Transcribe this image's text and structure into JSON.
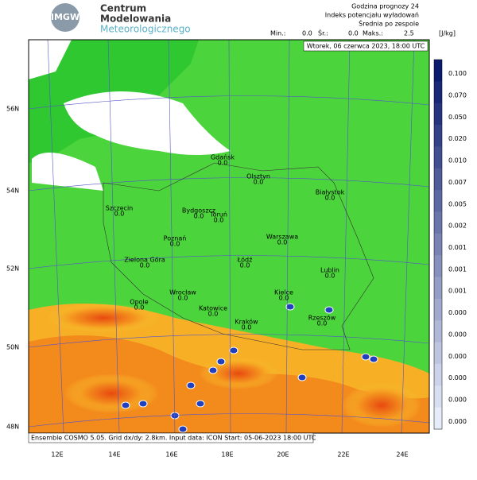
{
  "header": {
    "logo": "IMGW",
    "org": [
      "Centrum",
      "Modelowania",
      "Meteorologicznego"
    ],
    "info": [
      "Godzina prognozy 24",
      "Indeks potencjału wyładowań",
      "Średnia po zespole"
    ],
    "stats": [
      {
        "label": "Min.:",
        "value": "0.0"
      },
      {
        "label": "Śr.:",
        "value": "0.0"
      },
      {
        "label": "Maks.:",
        "value": "2.5"
      }
    ],
    "unit": "[J/kg]"
  },
  "date": "Wtorek, 06 czerwca 2023, 18:00 UTC",
  "footer": "Ensemble COSMO 5.05. Grid dx/dy: 2.8km. Input data: ICON Start: 05-06-2023 18:00 UTC",
  "axes": {
    "lat": [
      "56N",
      "54N",
      "52N",
      "50N",
      "48N"
    ],
    "lon": [
      "12E",
      "14E",
      "16E",
      "18E",
      "20E",
      "22E",
      "24E"
    ]
  },
  "legend": {
    "labels": [
      "0.100",
      "0.070",
      "0.050",
      "0.020",
      "0.010",
      "0.007",
      "0.005",
      "0.002",
      "0.001",
      "0.001",
      "0.001",
      "0.000",
      "0.000",
      "0.000",
      "0.000",
      "0.000",
      "0.000"
    ]
  },
  "cities": [
    {
      "name": "Gdańsk",
      "value": "0.0"
    },
    {
      "name": "Olsztyn",
      "value": "0.0"
    },
    {
      "name": "Białystok",
      "value": "0.0"
    },
    {
      "name": "Szczecin",
      "value": "0.0"
    },
    {
      "name": "Bydgoszcz",
      "value": "0.0"
    },
    {
      "name": "Toruń",
      "value": "0.0"
    },
    {
      "name": "Poznań",
      "value": "0.0"
    },
    {
      "name": "Warszawa",
      "value": "0.0"
    },
    {
      "name": "Zielona Góra",
      "value": "0.0"
    },
    {
      "name": "Łódź",
      "value": "0.0"
    },
    {
      "name": "Lublin",
      "value": "0.0"
    },
    {
      "name": "Wrocław",
      "value": "0.0"
    },
    {
      "name": "Kielce",
      "value": "0.0"
    },
    {
      "name": "Opole",
      "value": "0.0"
    },
    {
      "name": "Katowice",
      "value": "0.0"
    },
    {
      "name": "Kraków",
      "value": "0.0"
    },
    {
      "name": "Rzeszów",
      "value": "0.0"
    }
  ]
}
